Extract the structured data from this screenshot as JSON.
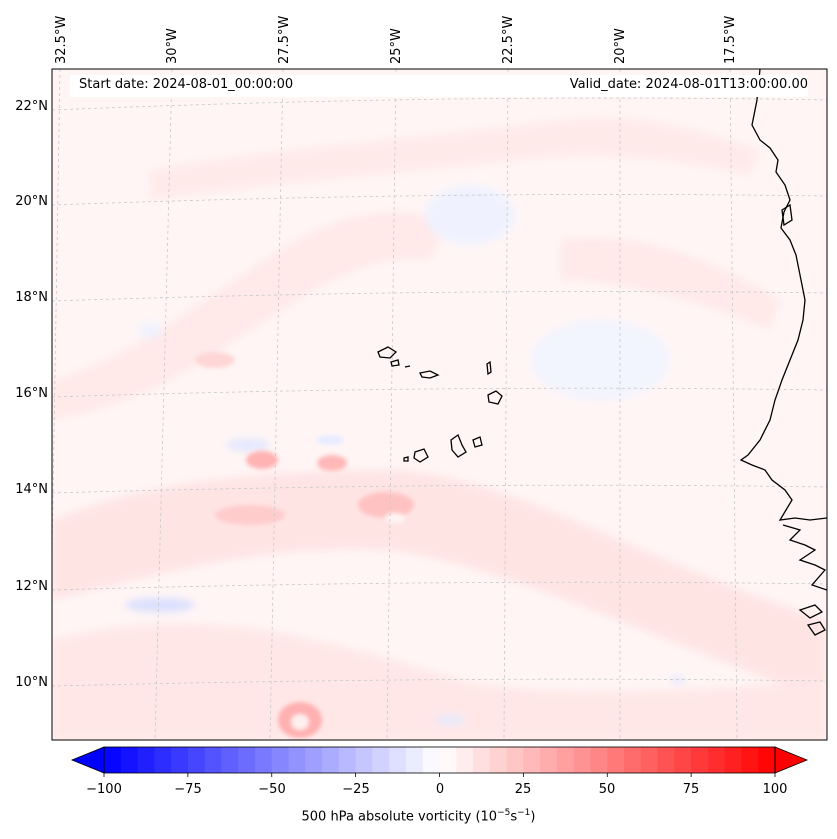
{
  "map": {
    "start_label": "Start date: 2024-08-01_00:00:00",
    "valid_label": "Valid_date: 2024-08-01T13:00:00.00",
    "longitude_labels": [
      "32.5°W",
      "30°W",
      "27.5°W",
      "25°W",
      "22.5°W",
      "20°W",
      "17.5°W"
    ],
    "latitude_labels": [
      "22°N",
      "20°N",
      "18°N",
      "16°N",
      "14°N",
      "12°N",
      "10°N"
    ],
    "variable": "500 hPa absolute vorticity"
  },
  "colorbar": {
    "label_text": "500 hPa absolute vorticity (10",
    "label_exp1": "−5",
    "label_mid": "s",
    "label_exp2": "−1",
    "label_close": ")",
    "ticks": [
      "−100",
      "−75",
      "−50",
      "−25",
      "0",
      "25",
      "50",
      "75",
      "100"
    ],
    "tick_values": [
      -100,
      -75,
      -50,
      -25,
      0,
      25,
      50,
      75,
      100
    ],
    "min": -100,
    "max": 100,
    "colors": {
      "low": "#0000ff",
      "mid": "#ffffff",
      "high": "#ff0000"
    }
  }
}
